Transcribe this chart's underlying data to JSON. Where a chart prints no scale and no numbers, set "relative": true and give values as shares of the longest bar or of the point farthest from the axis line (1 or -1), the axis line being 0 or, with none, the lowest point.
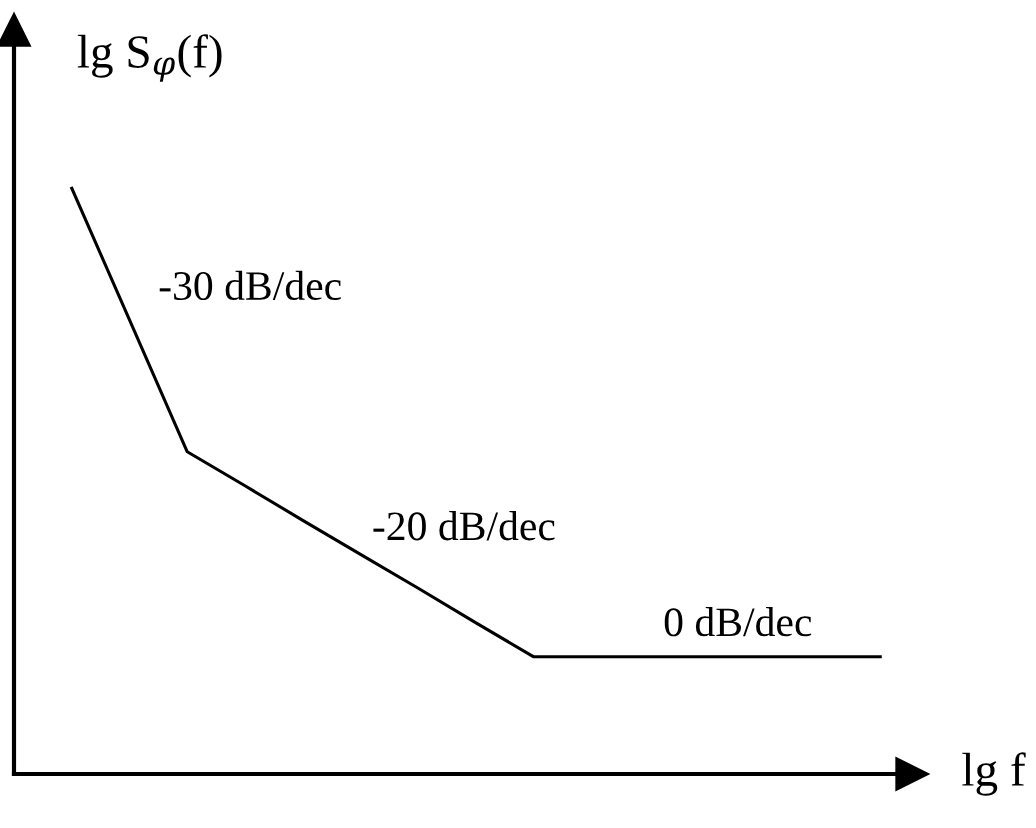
{
  "chart_data": {
    "type": "line",
    "relative": true,
    "tick_labels": false,
    "line_style": "solid",
    "categories": [
      null,
      null,
      null,
      null,
      null,
      null,
      null,
      null,
      null,
      null,
      null,
      null,
      null,
      null,
      null
    ],
    "series": [
      {
        "color": "#000000",
        "values": [
          1,
          0.775,
          0.55,
          0.492,
          0.433,
          0.375,
          0.317,
          0.258,
          0.2,
          0.2,
          0.2,
          0.2,
          0.2,
          0.2,
          0.2
        ]
      }
    ],
    "xlabel": "lg f",
    "ylabel": "lg S$_{φ}$(f)",
    "annotations": [
      "-30 dB/dec",
      "-20 dB/dec",
      "0 dB/dec"
    ]
  }
}
